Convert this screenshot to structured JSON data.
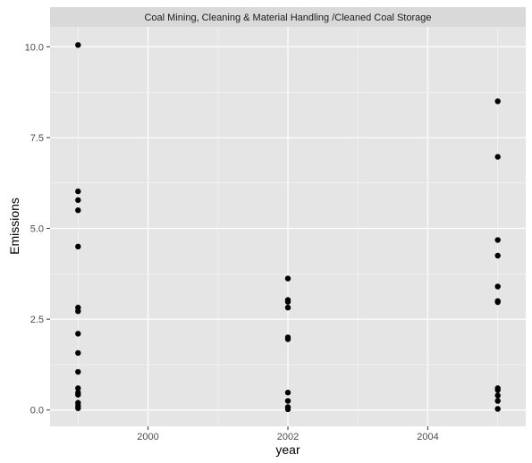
{
  "chart_data": {
    "type": "scatter",
    "facet_title": "Coal Mining, Cleaning & Material Handling /Cleaned Coal Storage",
    "xlabel": "year",
    "ylabel": "Emissions",
    "xlim": [
      1998.6,
      2005.4
    ],
    "ylim": [
      -0.45,
      10.55
    ],
    "x_ticks": [
      2000,
      2002,
      2004
    ],
    "x_tick_labels": [
      "2000",
      "2002",
      "2004"
    ],
    "y_ticks": [
      0,
      2.5,
      5,
      7.5,
      10
    ],
    "y_tick_labels": [
      "0.0",
      "2.5",
      "5.0",
      "7.5",
      "10.0"
    ],
    "grid": true,
    "panel_background": "#e5e5e5",
    "strip_background": "#d9d9d9",
    "gridline_color": "#ffffff",
    "point_color": "#000000",
    "points": [
      {
        "x": 1999,
        "y": 10.05
      },
      {
        "x": 1999,
        "y": 6.02
      },
      {
        "x": 1999,
        "y": 5.78
      },
      {
        "x": 1999,
        "y": 5.5
      },
      {
        "x": 1999,
        "y": 4.5
      },
      {
        "x": 1999,
        "y": 2.82
      },
      {
        "x": 1999,
        "y": 2.72
      },
      {
        "x": 1999,
        "y": 2.1
      },
      {
        "x": 1999,
        "y": 1.57
      },
      {
        "x": 1999,
        "y": 1.05
      },
      {
        "x": 1999,
        "y": 0.6
      },
      {
        "x": 1999,
        "y": 0.48
      },
      {
        "x": 1999,
        "y": 0.42
      },
      {
        "x": 1999,
        "y": 0.2
      },
      {
        "x": 1999,
        "y": 0.12
      },
      {
        "x": 1999,
        "y": 0.05
      },
      {
        "x": 2002,
        "y": 3.62
      },
      {
        "x": 2002,
        "y": 3.03
      },
      {
        "x": 2002,
        "y": 2.98
      },
      {
        "x": 2002,
        "y": 2.82
      },
      {
        "x": 2002,
        "y": 2.0
      },
      {
        "x": 2002,
        "y": 1.95
      },
      {
        "x": 2002,
        "y": 0.48
      },
      {
        "x": 2002,
        "y": 0.25
      },
      {
        "x": 2002,
        "y": 0.08
      },
      {
        "x": 2002,
        "y": 0.02
      },
      {
        "x": 2005,
        "y": 8.5
      },
      {
        "x": 2005,
        "y": 6.97
      },
      {
        "x": 2005,
        "y": 4.68
      },
      {
        "x": 2005,
        "y": 4.25
      },
      {
        "x": 2005,
        "y": 3.4
      },
      {
        "x": 2005,
        "y": 3.0
      },
      {
        "x": 2005,
        "y": 2.97
      },
      {
        "x": 2005,
        "y": 0.6
      },
      {
        "x": 2005,
        "y": 0.55
      },
      {
        "x": 2005,
        "y": 0.4
      },
      {
        "x": 2005,
        "y": 0.25
      },
      {
        "x": 2005,
        "y": 0.03
      }
    ]
  }
}
